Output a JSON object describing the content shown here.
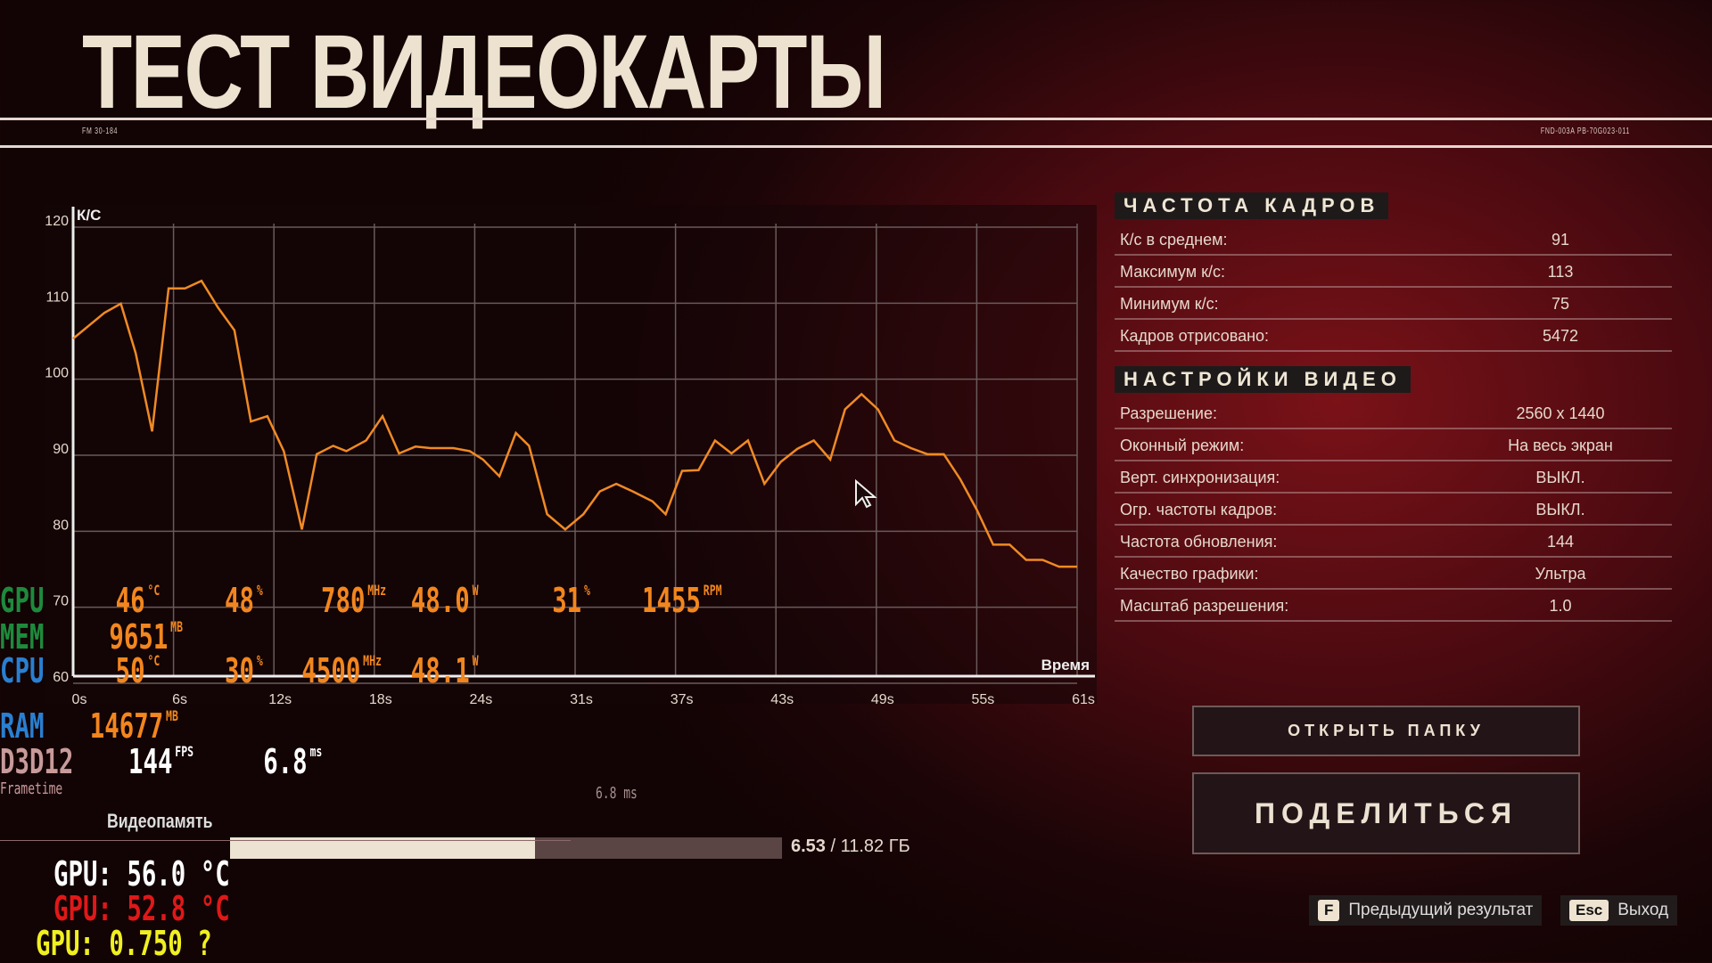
{
  "header": {
    "title": "ТЕСТ ВИДЕОКАРТЫ",
    "code_left": "FM 30-184",
    "code_right": "FND-003A PB-70G023-011"
  },
  "chart_data": {
    "type": "line",
    "ylabel": "К/С",
    "xlabel": "Время",
    "ylim": [
      60,
      120
    ],
    "yticks": [
      "120",
      "110",
      "100",
      "90",
      "80",
      "70",
      "60"
    ],
    "xticks": [
      "0s",
      "6s",
      "12s",
      "18s",
      "24s",
      "31s",
      "37s",
      "43s",
      "49s",
      "55s",
      "61s"
    ],
    "grid": true,
    "line_color": "#f08a24",
    "x": [
      0,
      1.9,
      2.9,
      3.8,
      4.8,
      5.8,
      6.8,
      7.8,
      8.8,
      9.8,
      10.8,
      11.8,
      12.8,
      13.9,
      14.8,
      15.8,
      16.6,
      17.8,
      18.8,
      19.8,
      20.8,
      21.7,
      23.1,
      24.1,
      24.9,
      25.9,
      26.9,
      27.7,
      28.8,
      29.9,
      31,
      32,
      33,
      34,
      35.2,
      36,
      37,
      38,
      39,
      40,
      41,
      42,
      43,
      44,
      45,
      46,
      46.9,
      47.9,
      48.9,
      49.9,
      50.9,
      51.9,
      52.9,
      53.9,
      54.9,
      55.9,
      56.9,
      57.9,
      58.9,
      59.9,
      61
    ],
    "y": [
      104.4,
      107.8,
      109,
      102.5,
      92.2,
      111,
      111,
      112,
      108.5,
      105.5,
      93.5,
      94.2,
      89.6,
      79.3,
      89.2,
      90.3,
      89.6,
      91,
      94.2,
      89.3,
      90.2,
      90,
      90,
      89.6,
      88.5,
      86.3,
      92,
      90.3,
      81.3,
      79.3,
      81.3,
      84.3,
      85.3,
      84.3,
      83,
      81.3,
      87,
      87.1,
      91,
      89.3,
      91,
      85.3,
      88.2,
      89.9,
      91,
      88.5,
      95.1,
      97.1,
      95.1,
      91,
      90,
      89.2,
      89.2,
      85.9,
      81.9,
      77.3,
      77.3,
      75.3,
      75.3,
      74.4,
      74.4
    ]
  },
  "fps_section": {
    "title": "ЧАСТОТА КАДРОВ",
    "rows": [
      {
        "label": "К/с в среднем:",
        "value": "91"
      },
      {
        "label": "Максимум к/с:",
        "value": "113"
      },
      {
        "label": "Минимум к/с:",
        "value": "75"
      },
      {
        "label": "Кадров отрисовано:",
        "value": "5472"
      }
    ]
  },
  "video_section": {
    "title": "НАСТРОЙКИ ВИДЕО",
    "rows": [
      {
        "label": "Разрешение:",
        "value": "2560 x 1440"
      },
      {
        "label": "Оконный режим:",
        "value": "На весь экран"
      },
      {
        "label": "Верт. синхронизация:",
        "value": "ВЫКЛ."
      },
      {
        "label": "Огр. частоты кадров:",
        "value": "ВЫКЛ."
      },
      {
        "label": "Частота обновления:",
        "value": "144"
      },
      {
        "label": "Качество графики:",
        "value": "Ультра"
      },
      {
        "label": "Масштаб разрешения:",
        "value": "1.0"
      }
    ]
  },
  "buttons": {
    "open_folder": "ОТКРЫТЬ ПАПКУ",
    "share": "ПОДЕЛИТЬСЯ"
  },
  "hints": [
    {
      "key": "F",
      "label": "Предыдущий результат"
    },
    {
      "key": "Esc",
      "label": "Выход"
    }
  ],
  "vram": {
    "label": "Видеопамять",
    "used": "6.53",
    "total": "/ 11.82 ГБ",
    "fraction": 0.552
  },
  "osd": {
    "gpu": {
      "label": "GPU",
      "temp": "46",
      "temp_u": "°C",
      "load": "48",
      "load_u": "%",
      "clock": "780",
      "clock_u": "MHz",
      "power": "48.0",
      "power_u": "W",
      "fan": "31",
      "fan_u": "%",
      "rpm": "1455",
      "rpm_u": "RPM"
    },
    "mem": {
      "label": "MEM",
      "value": "9651",
      "unit": "MB"
    },
    "cpu": {
      "label": "CPU",
      "temp": "50",
      "temp_u": "°C",
      "load": "30",
      "load_u": "%",
      "clock": "4500",
      "clock_u": "MHz",
      "power": "48.1",
      "power_u": "W"
    },
    "ram": {
      "label": "RAM",
      "value": "14677",
      "unit": "MB"
    },
    "api": {
      "label": "D3D12",
      "fps": "144",
      "fps_u": "FPS",
      "ft": "6.8",
      "ft_u": "ms"
    },
    "frametime_label": "Frametime",
    "frametime_value": "6.8 ms",
    "extra": [
      "GPU: 56.0 °C",
      "GPU: 52.8 °C",
      "GPU: 0.750 ?"
    ],
    "colors": {
      "gpu": "#1e8a3c",
      "cpu": "#2a7fd0",
      "api": "#c89a9a",
      "value": "#f2861e"
    }
  }
}
